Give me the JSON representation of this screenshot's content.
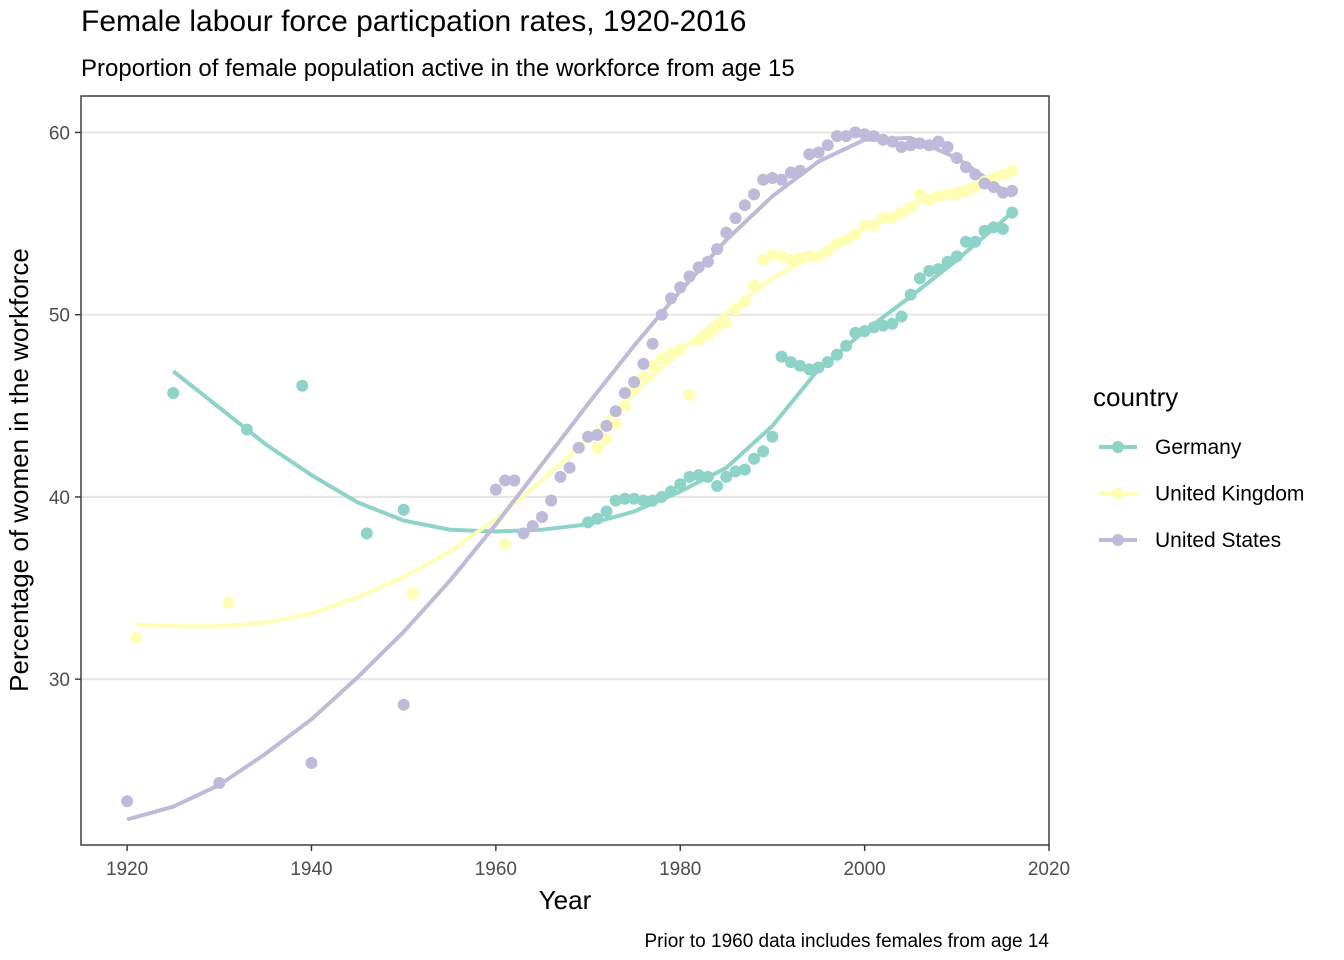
{
  "chart_data": {
    "type": "scatter",
    "title": "Female labour force particpation rates, 1920-2016",
    "subtitle": "Proportion of female population active in the workforce from age 15",
    "xlabel": "Year",
    "ylabel": "Percentage of women in the workforce",
    "caption": "Prior to 1960 data includes females from age 14",
    "xlim": [
      1915,
      2020
    ],
    "ylim": [
      20.9,
      62
    ],
    "xticks": [
      1920,
      1940,
      1960,
      1980,
      2000,
      2020
    ],
    "yticks": [
      30,
      40,
      50,
      60
    ],
    "grid": "horizontal major",
    "legend": {
      "title": "country",
      "position": "right"
    },
    "series": [
      {
        "name": "Germany",
        "color": "#8dd3c7",
        "points": [
          [
            1925,
            45.7
          ],
          [
            1933,
            43.7
          ],
          [
            1939,
            46.1
          ],
          [
            1946,
            38.0
          ],
          [
            1950,
            39.3
          ],
          [
            1970,
            38.6
          ],
          [
            1971,
            38.8
          ],
          [
            1972,
            39.2
          ],
          [
            1973,
            39.8
          ],
          [
            1974,
            39.9
          ],
          [
            1975,
            39.9
          ],
          [
            1976,
            39.8
          ],
          [
            1977,
            39.8
          ],
          [
            1978,
            40.0
          ],
          [
            1979,
            40.3
          ],
          [
            1980,
            40.7
          ],
          [
            1981,
            41.1
          ],
          [
            1982,
            41.2
          ],
          [
            1983,
            41.1
          ],
          [
            1984,
            40.6
          ],
          [
            1985,
            41.1
          ],
          [
            1986,
            41.4
          ],
          [
            1987,
            41.5
          ],
          [
            1988,
            42.1
          ],
          [
            1989,
            42.5
          ],
          [
            1990,
            43.3
          ],
          [
            1991,
            47.7
          ],
          [
            1992,
            47.4
          ],
          [
            1993,
            47.2
          ],
          [
            1994,
            47.0
          ],
          [
            1995,
            47.1
          ],
          [
            1996,
            47.4
          ],
          [
            1997,
            47.8
          ],
          [
            1998,
            48.3
          ],
          [
            1999,
            49.0
          ],
          [
            2000,
            49.1
          ],
          [
            2001,
            49.3
          ],
          [
            2002,
            49.4
          ],
          [
            2003,
            49.5
          ],
          [
            2004,
            49.9
          ],
          [
            2005,
            51.1
          ],
          [
            2006,
            52.0
          ],
          [
            2007,
            52.4
          ],
          [
            2008,
            52.5
          ],
          [
            2009,
            52.9
          ],
          [
            2010,
            53.2
          ],
          [
            2011,
            54.0
          ],
          [
            2012,
            54.0
          ],
          [
            2013,
            54.6
          ],
          [
            2014,
            54.8
          ],
          [
            2015,
            54.7
          ],
          [
            2016,
            55.6
          ]
        ],
        "trend": [
          [
            1925,
            46.9
          ],
          [
            1930,
            44.9
          ],
          [
            1935,
            42.9
          ],
          [
            1940,
            41.2
          ],
          [
            1945,
            39.7
          ],
          [
            1950,
            38.7
          ],
          [
            1955,
            38.2
          ],
          [
            1960,
            38.1
          ],
          [
            1965,
            38.2
          ],
          [
            1970,
            38.5
          ],
          [
            1975,
            39.2
          ],
          [
            1980,
            40.3
          ],
          [
            1985,
            41.6
          ],
          [
            1990,
            43.9
          ],
          [
            1995,
            47.0
          ],
          [
            2000,
            49.1
          ],
          [
            2005,
            51.0
          ],
          [
            2010,
            53.0
          ],
          [
            2016,
            55.6
          ]
        ]
      },
      {
        "name": "United Kingdom",
        "color": "#ffffb3",
        "points": [
          [
            1921,
            32.3
          ],
          [
            1931,
            34.2
          ],
          [
            1951,
            34.7
          ],
          [
            1961,
            37.4
          ],
          [
            1971,
            42.7
          ],
          [
            1972,
            43.2
          ],
          [
            1973,
            44.0
          ],
          [
            1974,
            45.0
          ],
          [
            1975,
            45.9
          ],
          [
            1976,
            46.6
          ],
          [
            1977,
            47.2
          ],
          [
            1978,
            47.6
          ],
          [
            1979,
            47.9
          ],
          [
            1980,
            48.1
          ],
          [
            1981,
            45.6
          ],
          [
            1982,
            48.6
          ],
          [
            1983,
            48.9
          ],
          [
            1984,
            49.3
          ],
          [
            1985,
            49.6
          ],
          [
            1986,
            50.3
          ],
          [
            1987,
            50.7
          ],
          [
            1988,
            51.6
          ],
          [
            1989,
            53.0
          ],
          [
            1990,
            53.3
          ],
          [
            1991,
            53.2
          ],
          [
            1992,
            53.0
          ],
          [
            1993,
            53.1
          ],
          [
            1994,
            53.2
          ],
          [
            1995,
            53.2
          ],
          [
            1996,
            53.5
          ],
          [
            1997,
            53.9
          ],
          [
            1998,
            54.1
          ],
          [
            1999,
            54.4
          ],
          [
            2000,
            54.9
          ],
          [
            2001,
            54.9
          ],
          [
            2002,
            55.3
          ],
          [
            2003,
            55.3
          ],
          [
            2004,
            55.6
          ],
          [
            2005,
            55.9
          ],
          [
            2006,
            56.6
          ],
          [
            2007,
            56.3
          ],
          [
            2008,
            56.5
          ],
          [
            2009,
            56.6
          ],
          [
            2010,
            56.6
          ],
          [
            2011,
            56.8
          ],
          [
            2012,
            57.0
          ],
          [
            2013,
            57.3
          ],
          [
            2014,
            57.5
          ],
          [
            2015,
            57.7
          ],
          [
            2016,
            57.9
          ]
        ],
        "trend": [
          [
            1921,
            33.0
          ],
          [
            1925,
            32.9
          ],
          [
            1930,
            32.9
          ],
          [
            1935,
            33.1
          ],
          [
            1940,
            33.6
          ],
          [
            1945,
            34.5
          ],
          [
            1950,
            35.6
          ],
          [
            1955,
            37.0
          ],
          [
            1960,
            38.8
          ],
          [
            1965,
            40.9
          ],
          [
            1970,
            43.2
          ],
          [
            1975,
            45.7
          ],
          [
            1980,
            48.0
          ],
          [
            1985,
            50.1
          ],
          [
            1990,
            52.0
          ],
          [
            1995,
            53.4
          ],
          [
            2000,
            54.8
          ],
          [
            2005,
            56.0
          ],
          [
            2010,
            56.9
          ],
          [
            2016,
            57.7
          ]
        ]
      },
      {
        "name": "United States",
        "color": "#bebada",
        "points": [
          [
            1920,
            23.3
          ],
          [
            1930,
            24.3
          ],
          [
            1940,
            25.4
          ],
          [
            1950,
            28.6
          ],
          [
            1960,
            40.4
          ],
          [
            1961,
            40.9
          ],
          [
            1962,
            40.9
          ],
          [
            1963,
            38.0
          ],
          [
            1964,
            38.4
          ],
          [
            1965,
            38.9
          ],
          [
            1966,
            39.8
          ],
          [
            1967,
            41.1
          ],
          [
            1968,
            41.6
          ],
          [
            1969,
            42.7
          ],
          [
            1970,
            43.3
          ],
          [
            1971,
            43.4
          ],
          [
            1972,
            43.9
          ],
          [
            1973,
            44.7
          ],
          [
            1974,
            45.7
          ],
          [
            1975,
            46.3
          ],
          [
            1976,
            47.3
          ],
          [
            1977,
            48.4
          ],
          [
            1978,
            50.0
          ],
          [
            1979,
            50.9
          ],
          [
            1980,
            51.5
          ],
          [
            1981,
            52.1
          ],
          [
            1982,
            52.6
          ],
          [
            1983,
            52.9
          ],
          [
            1984,
            53.6
          ],
          [
            1985,
            54.5
          ],
          [
            1986,
            55.3
          ],
          [
            1987,
            56.0
          ],
          [
            1988,
            56.6
          ],
          [
            1989,
            57.4
          ],
          [
            1990,
            57.5
          ],
          [
            1991,
            57.4
          ],
          [
            1992,
            57.8
          ],
          [
            1993,
            57.9
          ],
          [
            1994,
            58.8
          ],
          [
            1995,
            58.9
          ],
          [
            1996,
            59.3
          ],
          [
            1997,
            59.8
          ],
          [
            1998,
            59.8
          ],
          [
            1999,
            60.0
          ],
          [
            2000,
            59.9
          ],
          [
            2001,
            59.8
          ],
          [
            2002,
            59.6
          ],
          [
            2003,
            59.5
          ],
          [
            2004,
            59.2
          ],
          [
            2005,
            59.3
          ],
          [
            2006,
            59.4
          ],
          [
            2007,
            59.3
          ],
          [
            2008,
            59.5
          ],
          [
            2009,
            59.2
          ],
          [
            2010,
            58.6
          ],
          [
            2011,
            58.1
          ],
          [
            2012,
            57.7
          ],
          [
            2013,
            57.2
          ],
          [
            2014,
            57.0
          ],
          [
            2015,
            56.7
          ],
          [
            2016,
            56.8
          ]
        ],
        "trend": [
          [
            1920,
            22.3
          ],
          [
            1925,
            23.0
          ],
          [
            1930,
            24.2
          ],
          [
            1935,
            25.9
          ],
          [
            1940,
            27.8
          ],
          [
            1945,
            30.1
          ],
          [
            1950,
            32.6
          ],
          [
            1955,
            35.4
          ],
          [
            1960,
            38.5
          ],
          [
            1965,
            41.8
          ],
          [
            1970,
            45.1
          ],
          [
            1975,
            48.3
          ],
          [
            1980,
            51.3
          ],
          [
            1985,
            54.1
          ],
          [
            1990,
            56.5
          ],
          [
            1995,
            58.4
          ],
          [
            2000,
            59.6
          ],
          [
            2005,
            59.7
          ],
          [
            2010,
            58.6
          ],
          [
            2016,
            56.5
          ]
        ]
      }
    ]
  }
}
